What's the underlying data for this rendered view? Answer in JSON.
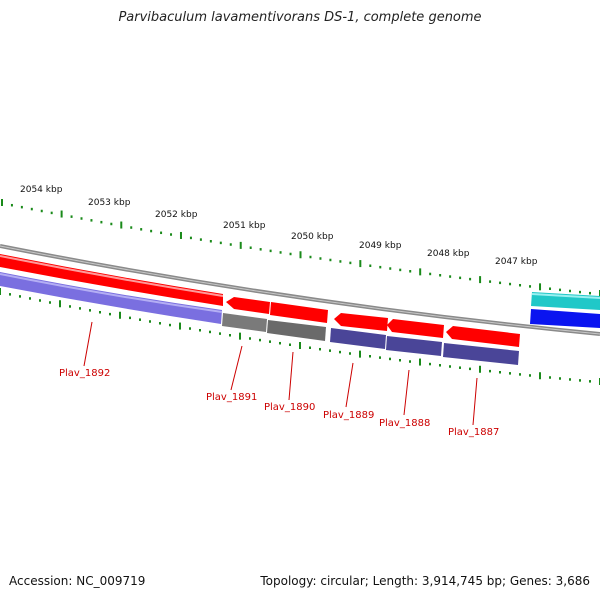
{
  "title": "Parvibaculum lavamentivorans DS-1, complete genome",
  "footer": {
    "accession": "Accession: NC_009719",
    "summary": "Topology: circular; Length: 3,914,745 bp; Genes: 3,686"
  },
  "colors": {
    "backbone": "#8a8a8a",
    "tick": "#1a8a1a",
    "label": "#cc0000",
    "gene_forward": "#ff0000",
    "gene_reverse_strand_band": "#7a6fe0",
    "gene_grey": "#7a7a7a",
    "gene_dark_blue": "#4a4598",
    "gene_cyan": "#20c8c8",
    "gene_blue": "#0a14f0"
  },
  "map": {
    "kbp_labels": [
      "2054 kbp",
      "2053 kbp",
      "2052 kbp",
      "2051 kbp",
      "2050 kbp",
      "2049 kbp",
      "2048 kbp",
      "2047 kbp"
    ],
    "gene_labels": [
      "Plav_1892",
      "Plav_1891",
      "Plav_1890",
      "Plav_1889",
      "Plav_1888",
      "Plav_1887"
    ]
  }
}
